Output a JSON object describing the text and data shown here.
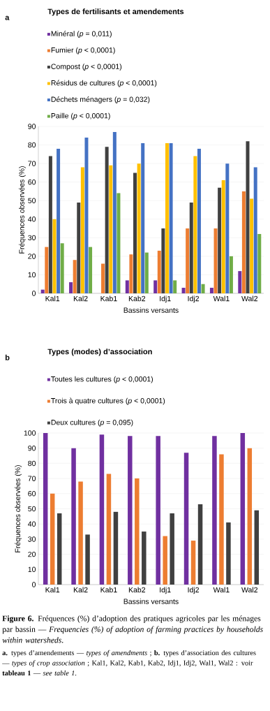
{
  "chart_data": [
    {
      "type": "bar",
      "title": "Types de fertilisants et amendements",
      "annotations": [
        "a"
      ],
      "xlabel": "Bassins versants",
      "ylabel": "Fréquences observées (%)",
      "categories": [
        "Kal1",
        "Kal2",
        "Kab1",
        "Kab2",
        "Idj1",
        "Idj2",
        "Wal1",
        "Wal2"
      ],
      "ylim": [
        0,
        90
      ],
      "yticks": [
        0,
        10,
        20,
        30,
        40,
        50,
        60,
        70,
        80,
        90
      ],
      "grid": "y",
      "legend": "top left",
      "series": [
        {
          "name": "Minéral (*p* = 0,011)",
          "color": "#7030a0",
          "values": [
            2,
            6,
            0,
            7,
            7,
            3,
            3,
            12
          ]
        },
        {
          "name": "Fumier (*p* < 0,0001)",
          "color": "#ed7d31",
          "values": [
            25,
            18,
            16,
            21,
            23,
            35,
            35,
            55
          ]
        },
        {
          "name": "Compost (*p* < 0,0001)",
          "color": "#404040",
          "values": [
            74,
            49,
            79,
            65,
            35,
            49,
            57,
            82
          ]
        },
        {
          "name": "Résidus de cultures (*p* < 0,0001)",
          "color": "#ffc000",
          "values": [
            40,
            68,
            69,
            70,
            81,
            74,
            61,
            51
          ]
        },
        {
          "name": "Déchets ménagers (*p* = 0,032)",
          "color": "#4472c4",
          "values": [
            78,
            84,
            87,
            81,
            81,
            78,
            70,
            68
          ]
        },
        {
          "name": "Paille (*p* < 0,0001)",
          "color": "#70ad47",
          "values": [
            27,
            25,
            54,
            22,
            7,
            5,
            20,
            32
          ]
        }
      ]
    },
    {
      "type": "bar",
      "title": "Types (modes) d’association",
      "annotations": [
        "b",
        "**Figure 6.** Fréquences (%) d’adoption des pratiques agricoles par les ménages par bassin — *Frequencies (%) of adoption of farming practices by households within watersheds*.",
        "**a.** types d’amendements — *types of amendments* ; **b.** types d’association des cultures — *types of crop association* ; Kal1, Kal2, Kab1, Kab2, Idj1, Idj2, Wal1, Wal2 : voir **tableau 1** — *see table 1*."
      ],
      "xlabel": "Bassins versants",
      "ylabel": "Fréquences observées (%)",
      "categories": [
        "Kal1",
        "Kal2",
        "Kab1",
        "Kab2",
        "Idj1",
        "Idj2",
        "Wal1",
        "Wal2"
      ],
      "ylim": [
        0,
        100
      ],
      "yticks": [
        0,
        10,
        20,
        30,
        40,
        50,
        60,
        70,
        80,
        90,
        100
      ],
      "grid": "y",
      "legend": "top left",
      "series": [
        {
          "name": "Toutes les cultures (*p* < 0,0001)",
          "color": "#7030a0",
          "values": [
            100,
            90,
            99,
            98,
            98,
            87,
            98,
            100
          ]
        },
        {
          "name": "Trois à quatre cultures (*p* < 0,0001)",
          "color": "#ed7d31",
          "values": [
            60,
            68,
            73,
            70,
            32,
            29,
            86,
            90
          ]
        },
        {
          "name": "Deux cultures (*p* = 0,095)",
          "color": "#404040",
          "values": [
            47,
            33,
            48,
            35,
            47,
            53,
            41,
            49
          ]
        }
      ]
    }
  ]
}
